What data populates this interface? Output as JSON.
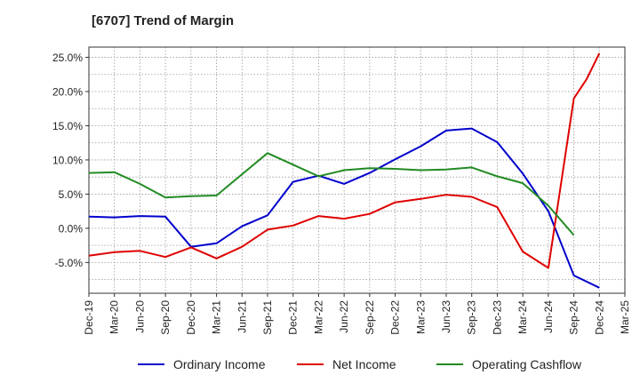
{
  "chart_data": {
    "type": "line",
    "title": "[6707]  Trend of Margin",
    "xlabel": "",
    "ylabel": "",
    "categories": [
      "Dec-19",
      "Mar-20",
      "Jun-20",
      "Sep-20",
      "Dec-20",
      "Mar-21",
      "Jun-21",
      "Sep-21",
      "Dec-21",
      "Mar-22",
      "Jun-22",
      "Sep-22",
      "Dec-22",
      "Mar-23",
      "Jun-23",
      "Sep-23",
      "Dec-23",
      "Mar-24",
      "Jun-24",
      "Sep-24",
      "Dec-24",
      "Mar-25"
    ],
    "ylim": [
      -9.5,
      26.5
    ],
    "yticks": [
      -5,
      0,
      5,
      10,
      15,
      20,
      25
    ],
    "ytick_labels": [
      "-5.0%",
      "0.0%",
      "5.0%",
      "10.0%",
      "15.0%",
      "20.0%",
      "25.0%"
    ],
    "grid": true,
    "legend_position": "bottom",
    "series": [
      {
        "name": "Ordinary Income",
        "color": "#0000cc",
        "points": [
          [
            0,
            1.7
          ],
          [
            1,
            1.6
          ],
          [
            2,
            1.8
          ],
          [
            3,
            1.7
          ],
          [
            4,
            -2.7
          ],
          [
            5,
            -2.2
          ],
          [
            6,
            0.3
          ],
          [
            7,
            1.9
          ],
          [
            8,
            6.8
          ],
          [
            9,
            7.7
          ],
          [
            10,
            6.5
          ],
          [
            11,
            8.1
          ],
          [
            12,
            10.1
          ],
          [
            13,
            12.0
          ],
          [
            14,
            14.3
          ],
          [
            15,
            14.6
          ],
          [
            16,
            12.6
          ],
          [
            17,
            8.0
          ],
          [
            18,
            2.5
          ],
          [
            19,
            -6.9
          ],
          [
            20,
            -8.7
          ]
        ]
      },
      {
        "name": "Net Income",
        "color": "#e00000",
        "points": [
          [
            0,
            -4.0
          ],
          [
            1,
            -3.5
          ],
          [
            2,
            -3.3
          ],
          [
            3,
            -4.2
          ],
          [
            4,
            -2.8
          ],
          [
            5,
            -4.4
          ],
          [
            6,
            -2.7
          ],
          [
            7,
            -0.2
          ],
          [
            8,
            0.4
          ],
          [
            9,
            1.8
          ],
          [
            10,
            1.4
          ],
          [
            11,
            2.1
          ],
          [
            12,
            3.8
          ],
          [
            13,
            4.3
          ],
          [
            14,
            4.9
          ],
          [
            15,
            4.6
          ],
          [
            16,
            3.1
          ],
          [
            17,
            -3.4
          ],
          [
            18,
            -5.8
          ],
          [
            19,
            19.0
          ],
          [
            19.5,
            21.8
          ],
          [
            20,
            25.6
          ]
        ]
      },
      {
        "name": "Operating Cashflow",
        "color": "#228b22",
        "points": [
          [
            0,
            8.1
          ],
          [
            1,
            8.2
          ],
          [
            2,
            6.5
          ],
          [
            3,
            4.5
          ],
          [
            4,
            4.7
          ],
          [
            5,
            4.8
          ],
          [
            6,
            7.9
          ],
          [
            7,
            11.0
          ],
          [
            8,
            9.3
          ],
          [
            9,
            7.6
          ],
          [
            10,
            8.5
          ],
          [
            11,
            8.8
          ],
          [
            12,
            8.7
          ],
          [
            13,
            8.5
          ],
          [
            14,
            8.6
          ],
          [
            15,
            8.9
          ],
          [
            16,
            7.6
          ],
          [
            17,
            6.6
          ],
          [
            18,
            3.3
          ],
          [
            19,
            -1.0
          ]
        ]
      }
    ]
  }
}
